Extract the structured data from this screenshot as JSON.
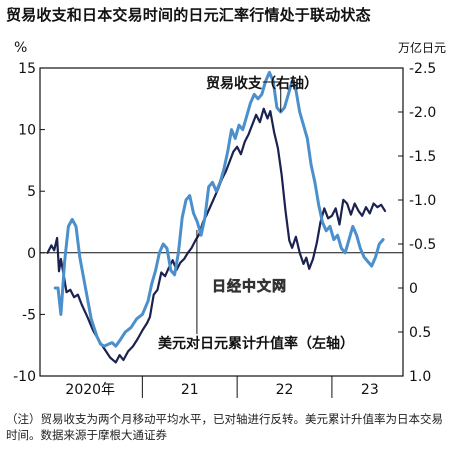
{
  "title": "贸易收支和日本交易时间的日元汇率行情处于联动状态",
  "note": "（注）贸易收支为两个月移动平均水平，已对轴进行反转。美元累计升值率为日本交易时间。数据来源于摩根大通证券",
  "watermark": "日经中文网",
  "chart_data": {
    "type": "line",
    "left_axis": {
      "unit": "%",
      "ticks": [
        15,
        10,
        5,
        0,
        -5,
        -10
      ],
      "ylim": [
        -10,
        15
      ]
    },
    "right_axis": {
      "unit": "万亿日元",
      "inverted": true,
      "ticks": [
        -2.5,
        -2.0,
        -1.5,
        -1.0,
        -0.5,
        0,
        0.5,
        1.0
      ],
      "ylim": [
        -2.5,
        1.0
      ]
    },
    "x_axis": {
      "ticks": [
        "2020年",
        "21",
        "22",
        "23"
      ],
      "range": [
        2019.92,
        2023.75
      ]
    },
    "series": [
      {
        "name": "美元对日元累计升值率（左轴）",
        "axis": "left",
        "color": "#1c2250",
        "points": [
          [
            2020.0,
            0.0
          ],
          [
            2020.04,
            0.6
          ],
          [
            2020.07,
            0.2
          ],
          [
            2020.1,
            1.2
          ],
          [
            2020.12,
            -1.5
          ],
          [
            2020.14,
            -0.5
          ],
          [
            2020.17,
            -1.8
          ],
          [
            2020.2,
            -3.2
          ],
          [
            2020.24,
            -3.0
          ],
          [
            2020.28,
            -3.6
          ],
          [
            2020.32,
            -3.4
          ],
          [
            2020.36,
            -4.2
          ],
          [
            2020.42,
            -5.2
          ],
          [
            2020.48,
            -6.3
          ],
          [
            2020.54,
            -7.1
          ],
          [
            2020.6,
            -7.8
          ],
          [
            2020.66,
            -8.5
          ],
          [
            2020.72,
            -8.9
          ],
          [
            2020.76,
            -8.3
          ],
          [
            2020.8,
            -8.7
          ],
          [
            2020.85,
            -8.0
          ],
          [
            2020.9,
            -7.6
          ],
          [
            2020.95,
            -7.0
          ],
          [
            2021.0,
            -6.3
          ],
          [
            2021.05,
            -5.7
          ],
          [
            2021.08,
            -5.2
          ],
          [
            2021.12,
            -3.4
          ],
          [
            2021.16,
            -3.0
          ],
          [
            2021.2,
            -1.6
          ],
          [
            2021.24,
            -1.9
          ],
          [
            2021.28,
            -1.2
          ],
          [
            2021.32,
            -0.6
          ],
          [
            2021.36,
            -1.4
          ],
          [
            2021.4,
            -0.8
          ],
          [
            2021.44,
            -0.5
          ],
          [
            2021.48,
            0.0
          ],
          [
            2021.52,
            0.4
          ],
          [
            2021.56,
            1.0
          ],
          [
            2021.6,
            1.5
          ],
          [
            2021.64,
            2.5
          ],
          [
            2021.68,
            3.1
          ],
          [
            2021.72,
            3.8
          ],
          [
            2021.76,
            4.5
          ],
          [
            2021.8,
            5.2
          ],
          [
            2021.84,
            6.0
          ],
          [
            2021.88,
            6.6
          ],
          [
            2021.92,
            7.4
          ],
          [
            2021.96,
            8.2
          ],
          [
            2022.0,
            8.6
          ],
          [
            2022.04,
            8.0
          ],
          [
            2022.08,
            9.0
          ],
          [
            2022.12,
            9.6
          ],
          [
            2022.16,
            10.4
          ],
          [
            2022.2,
            11.2
          ],
          [
            2022.24,
            10.6
          ],
          [
            2022.28,
            11.7
          ],
          [
            2022.32,
            10.9
          ],
          [
            2022.35,
            11.5
          ],
          [
            2022.39,
            9.8
          ],
          [
            2022.43,
            8.5
          ],
          [
            2022.47,
            6.3
          ],
          [
            2022.51,
            3.4
          ],
          [
            2022.55,
            1.0
          ],
          [
            2022.58,
            0.4
          ],
          [
            2022.62,
            1.3
          ],
          [
            2022.66,
            0.0
          ],
          [
            2022.7,
            -0.9
          ],
          [
            2022.73,
            -0.4
          ],
          [
            2022.76,
            -1.3
          ],
          [
            2022.8,
            -0.5
          ],
          [
            2022.84,
            0.8
          ],
          [
            2022.88,
            2.5
          ],
          [
            2022.92,
            3.6
          ],
          [
            2022.96,
            2.8
          ],
          [
            2023.0,
            3.0
          ],
          [
            2023.04,
            3.6
          ],
          [
            2023.08,
            2.3
          ],
          [
            2023.12,
            4.3
          ],
          [
            2023.16,
            4.0
          ],
          [
            2023.2,
            3.1
          ],
          [
            2023.24,
            4.0
          ],
          [
            2023.28,
            3.4
          ],
          [
            2023.32,
            3.0
          ],
          [
            2023.36,
            3.7
          ],
          [
            2023.4,
            3.2
          ],
          [
            2023.44,
            4.0
          ],
          [
            2023.48,
            3.7
          ],
          [
            2023.52,
            3.9
          ],
          [
            2023.56,
            3.4
          ]
        ]
      },
      {
        "name": "贸易收支（右轴）",
        "axis": "right",
        "color": "#4b8fcc",
        "points": [
          [
            2020.08,
            0.0
          ],
          [
            2020.11,
            0.0
          ],
          [
            2020.14,
            0.3
          ],
          [
            2020.18,
            -0.3
          ],
          [
            2020.22,
            -0.7
          ],
          [
            2020.26,
            -0.78
          ],
          [
            2020.3,
            -0.7
          ],
          [
            2020.34,
            -0.35
          ],
          [
            2020.4,
            0.0
          ],
          [
            2020.46,
            0.35
          ],
          [
            2020.52,
            0.55
          ],
          [
            2020.56,
            0.64
          ],
          [
            2020.6,
            0.66
          ],
          [
            2020.64,
            0.64
          ],
          [
            2020.68,
            0.62
          ],
          [
            2020.72,
            0.66
          ],
          [
            2020.76,
            0.6
          ],
          [
            2020.82,
            0.5
          ],
          [
            2020.88,
            0.45
          ],
          [
            2020.94,
            0.35
          ],
          [
            2021.0,
            0.3
          ],
          [
            2021.06,
            0.15
          ],
          [
            2021.1,
            -0.05
          ],
          [
            2021.14,
            -0.2
          ],
          [
            2021.18,
            -0.4
          ],
          [
            2021.22,
            -0.5
          ],
          [
            2021.26,
            -0.45
          ],
          [
            2021.3,
            -0.2
          ],
          [
            2021.34,
            -0.15
          ],
          [
            2021.38,
            -0.4
          ],
          [
            2021.42,
            -0.8
          ],
          [
            2021.46,
            -1.0
          ],
          [
            2021.5,
            -1.05
          ],
          [
            2021.54,
            -0.85
          ],
          [
            2021.58,
            -0.75
          ],
          [
            2021.62,
            -0.6
          ],
          [
            2021.66,
            -0.8
          ],
          [
            2021.7,
            -1.15
          ],
          [
            2021.74,
            -1.2
          ],
          [
            2021.78,
            -1.1
          ],
          [
            2021.82,
            -1.2
          ],
          [
            2021.86,
            -1.35
          ],
          [
            2021.9,
            -1.55
          ],
          [
            2021.94,
            -1.8
          ],
          [
            2021.98,
            -1.7
          ],
          [
            2022.02,
            -1.85
          ],
          [
            2022.06,
            -1.8
          ],
          [
            2022.1,
            -1.95
          ],
          [
            2022.14,
            -2.1
          ],
          [
            2022.18,
            -2.2
          ],
          [
            2022.22,
            -2.15
          ],
          [
            2022.26,
            -2.2
          ],
          [
            2022.3,
            -2.35
          ],
          [
            2022.34,
            -2.45
          ],
          [
            2022.38,
            -2.35
          ],
          [
            2022.42,
            -2.05
          ],
          [
            2022.46,
            -2.0
          ],
          [
            2022.5,
            -2.05
          ],
          [
            2022.54,
            -2.2
          ],
          [
            2022.58,
            -2.35
          ],
          [
            2022.62,
            -2.25
          ],
          [
            2022.66,
            -2.0
          ],
          [
            2022.7,
            -1.85
          ],
          [
            2022.74,
            -1.7
          ],
          [
            2022.78,
            -1.4
          ],
          [
            2022.82,
            -1.2
          ],
          [
            2022.86,
            -0.95
          ],
          [
            2022.9,
            -0.75
          ],
          [
            2022.94,
            -0.65
          ],
          [
            2022.98,
            -0.7
          ],
          [
            2023.02,
            -0.55
          ],
          [
            2023.06,
            -0.6
          ],
          [
            2023.1,
            -0.45
          ],
          [
            2023.14,
            -0.4
          ],
          [
            2023.18,
            -0.55
          ],
          [
            2023.22,
            -0.7
          ],
          [
            2023.26,
            -0.6
          ],
          [
            2023.3,
            -0.45
          ],
          [
            2023.34,
            -0.35
          ],
          [
            2023.38,
            -0.3
          ],
          [
            2023.42,
            -0.25
          ],
          [
            2023.46,
            -0.35
          ],
          [
            2023.5,
            -0.5
          ],
          [
            2023.54,
            -0.55
          ]
        ]
      }
    ],
    "annotations": [
      {
        "text": "贸易收支（右轴）",
        "points_to": [
          2022.46,
          -2.0
        ]
      },
      {
        "text": "美元对日元累计升值率（左轴）",
        "points_to": [
          2021.66,
          -1.0
        ]
      }
    ]
  }
}
